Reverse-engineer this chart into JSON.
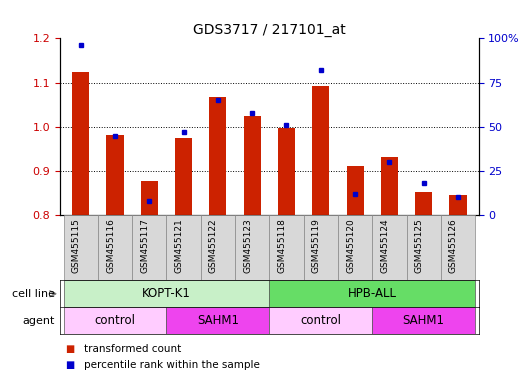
{
  "title": "GDS3717 / 217101_at",
  "categories": [
    "GSM455115",
    "GSM455116",
    "GSM455117",
    "GSM455121",
    "GSM455122",
    "GSM455123",
    "GSM455118",
    "GSM455119",
    "GSM455120",
    "GSM455124",
    "GSM455125",
    "GSM455126"
  ],
  "red_values": [
    1.125,
    0.982,
    0.878,
    0.975,
    1.068,
    1.025,
    0.998,
    1.092,
    0.912,
    0.932,
    0.852,
    0.845
  ],
  "blue_values": [
    96,
    45,
    8,
    47,
    65,
    58,
    51,
    82,
    12,
    30,
    18,
    10
  ],
  "ylim_left": [
    0.8,
    1.2
  ],
  "ylim_right": [
    0,
    100
  ],
  "yticks_left": [
    0.8,
    0.9,
    1.0,
    1.1,
    1.2
  ],
  "yticks_right": [
    0,
    25,
    50,
    75,
    100
  ],
  "ytick_right_labels": [
    "0",
    "25",
    "50",
    "75",
    "100%"
  ],
  "cell_line_groups": [
    {
      "label": "KOPT-K1",
      "start": 0,
      "end": 6,
      "color": "#c8f0c8"
    },
    {
      "label": "HPB-ALL",
      "start": 6,
      "end": 12,
      "color": "#66dd66"
    }
  ],
  "agent_groups": [
    {
      "label": "control",
      "start": 0,
      "end": 3,
      "color": "#ffccff"
    },
    {
      "label": "SAHM1",
      "start": 3,
      "end": 6,
      "color": "#ee44ee"
    },
    {
      "label": "control",
      "start": 6,
      "end": 9,
      "color": "#ffccff"
    },
    {
      "label": "SAHM1",
      "start": 9,
      "end": 12,
      "color": "#ee44ee"
    }
  ],
  "red_color": "#cc2200",
  "blue_color": "#0000cc",
  "tick_label_color_left": "#cc0000",
  "tick_label_color_right": "#0000cc",
  "legend_red": "transformed count",
  "legend_blue": "percentile rank within the sample",
  "cell_line_label": "cell line",
  "agent_label": "agent"
}
